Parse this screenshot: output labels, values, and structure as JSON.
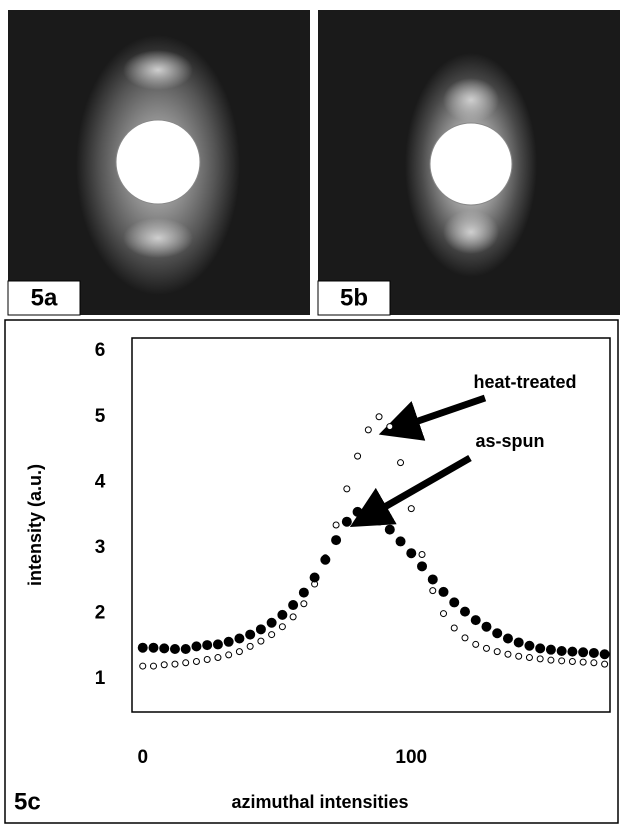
{
  "panels": [
    "5a",
    "5b"
  ],
  "chart_data": {
    "type": "scatter",
    "panel_label": "5c",
    "x_label": "azimuthal intensities",
    "y_label": "intensity (a.u.)",
    "xlim": [
      -4,
      174
    ],
    "xticks": [
      0,
      100
    ],
    "ylim": [
      0.5,
      6.2
    ],
    "yticks": [
      1,
      2,
      3,
      4,
      5,
      6
    ],
    "grid": false,
    "x": [
      0,
      4,
      8,
      12,
      16,
      20,
      24,
      28,
      32,
      36,
      40,
      44,
      48,
      52,
      56,
      60,
      64,
      68,
      72,
      76,
      80,
      84,
      88,
      92,
      96,
      100,
      104,
      108,
      112,
      116,
      120,
      124,
      128,
      132,
      136,
      140,
      144,
      148,
      152,
      156,
      160,
      164,
      168,
      172
    ],
    "series": [
      {
        "name": "heat-treated",
        "color": "#ffffff",
        "values": [
          1.2,
          1.2,
          1.22,
          1.23,
          1.25,
          1.27,
          1.3,
          1.33,
          1.37,
          1.42,
          1.5,
          1.58,
          1.68,
          1.8,
          1.95,
          2.15,
          2.45,
          2.85,
          3.35,
          3.9,
          4.4,
          4.8,
          5.0,
          4.85,
          4.3,
          3.6,
          2.9,
          2.35,
          2.0,
          1.78,
          1.63,
          1.53,
          1.47,
          1.42,
          1.38,
          1.35,
          1.33,
          1.31,
          1.29,
          1.28,
          1.27,
          1.26,
          1.25,
          1.23
        ]
      },
      {
        "name": "as-spun",
        "color": "#000000",
        "values": [
          1.48,
          1.48,
          1.47,
          1.46,
          1.46,
          1.5,
          1.52,
          1.53,
          1.57,
          1.62,
          1.68,
          1.76,
          1.86,
          1.98,
          2.13,
          2.32,
          2.55,
          2.82,
          3.12,
          3.4,
          3.55,
          3.52,
          3.42,
          3.28,
          3.1,
          2.92,
          2.72,
          2.52,
          2.33,
          2.17,
          2.03,
          1.9,
          1.8,
          1.7,
          1.62,
          1.56,
          1.51,
          1.47,
          1.45,
          1.43,
          1.42,
          1.41,
          1.4,
          1.38
        ]
      }
    ]
  }
}
